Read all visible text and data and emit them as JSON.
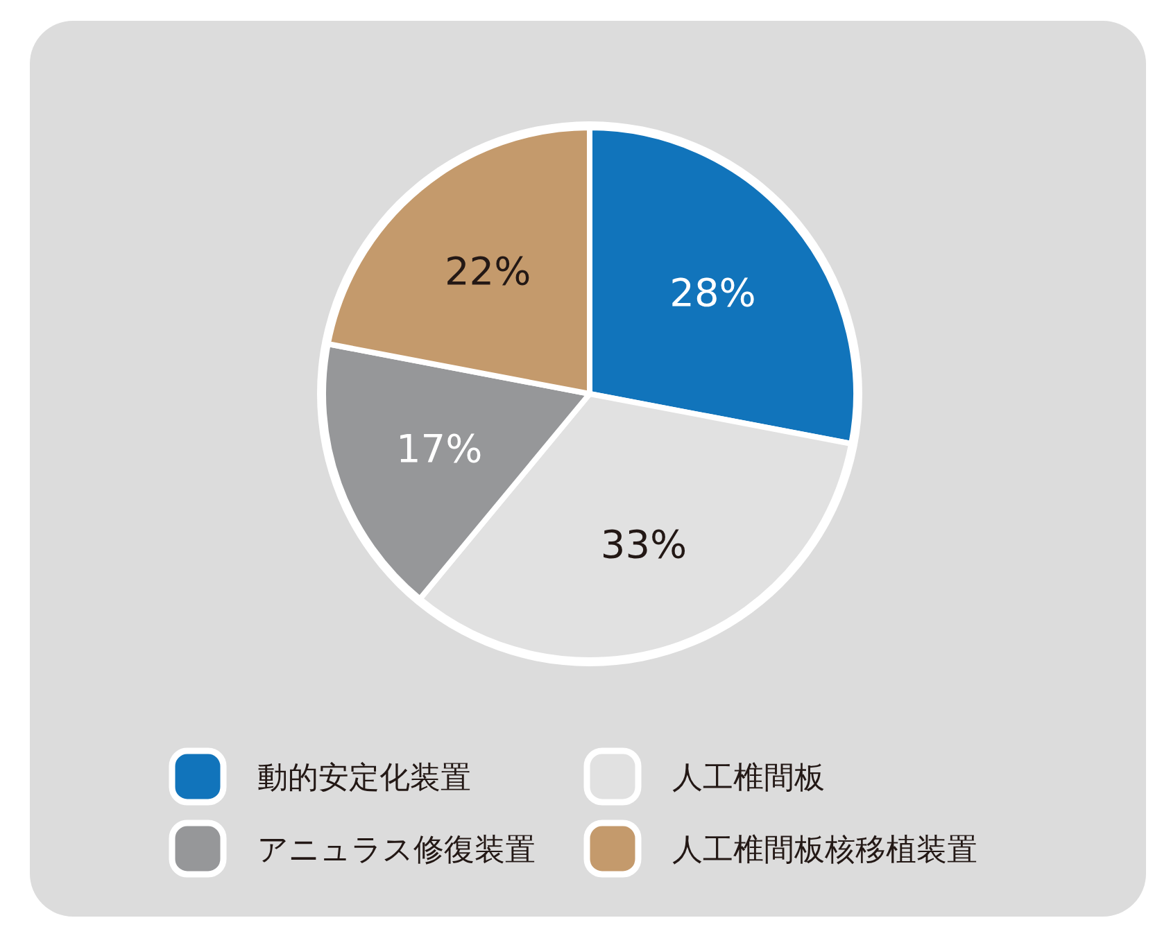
{
  "chart_data": {
    "type": "pie",
    "categories": [
      "動的安定化装置",
      "人工椎間板",
      "アニュラス修復装置",
      "人工椎間板核移植装置"
    ],
    "values": [
      28,
      33,
      17,
      22
    ],
    "colors": [
      "#1174bb",
      "#e1e1e1",
      "#969799",
      "#c49a6c"
    ],
    "value_labels": [
      "28%",
      "33%",
      "17%",
      "22%"
    ],
    "legend": "bottom"
  }
}
